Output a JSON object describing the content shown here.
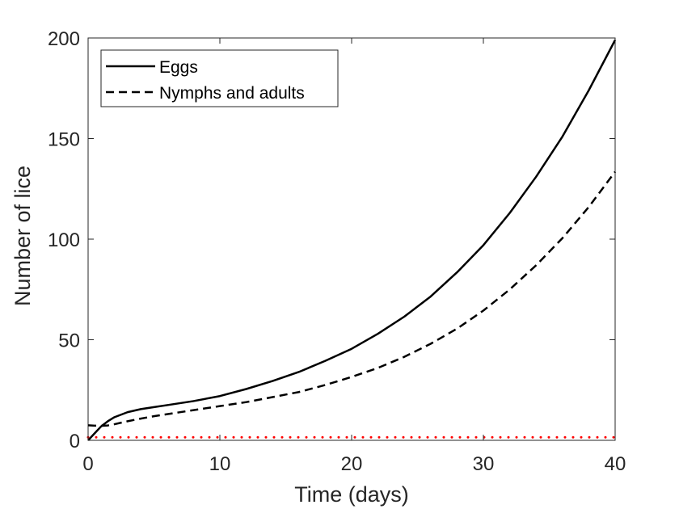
{
  "chart_data": {
    "type": "line",
    "title": "",
    "xlabel": "Time (days)",
    "ylabel": "Number of lice",
    "xlim": [
      0,
      40
    ],
    "ylim": [
      0,
      200
    ],
    "xticks": [
      0,
      10,
      20,
      30,
      40
    ],
    "yticks": [
      0,
      50,
      100,
      150,
      200
    ],
    "xtick_labels": [
      "0",
      "10",
      "20",
      "30",
      "40"
    ],
    "ytick_labels": [
      "0",
      "50",
      "100",
      "150",
      "200"
    ],
    "grid": false,
    "legend_position": "top-left",
    "series": [
      {
        "name": "Eggs",
        "style": "solid",
        "color": "#000000",
        "x": [
          0,
          0.5,
          1,
          1.5,
          2,
          3,
          4,
          5,
          6,
          8,
          10,
          12,
          14,
          16,
          18,
          20,
          22,
          24,
          26,
          28,
          30,
          32,
          34,
          36,
          38,
          40
        ],
        "y": [
          0,
          3.5,
          7,
          9.5,
          11.5,
          14,
          15.5,
          16.5,
          17.5,
          19.5,
          22,
          25.5,
          29.5,
          34,
          39.5,
          45.5,
          53,
          61.5,
          71.5,
          83.5,
          97,
          113,
          131,
          151,
          174,
          199
        ]
      },
      {
        "name": "Nymphs and adults",
        "style": "dashed",
        "color": "#000000",
        "x": [
          0,
          0.5,
          1,
          1.5,
          2,
          3,
          4,
          5,
          6,
          8,
          10,
          12,
          14,
          16,
          18,
          20,
          22,
          24,
          26,
          28,
          30,
          32,
          34,
          36,
          38,
          40
        ],
        "y": [
          7.5,
          7.3,
          7.2,
          7.4,
          8,
          9.5,
          10.8,
          12,
          13,
          15,
          17,
          19,
          21.5,
          24,
          27.5,
          31.5,
          36,
          41.5,
          48,
          55.5,
          64.5,
          75,
          87,
          100.5,
          116,
          133.5
        ]
      },
      {
        "name": "",
        "style": "dotted",
        "color": "#ff0000",
        "x": [
          0,
          40
        ],
        "y": [
          1.5,
          1.5
        ]
      }
    ]
  }
}
